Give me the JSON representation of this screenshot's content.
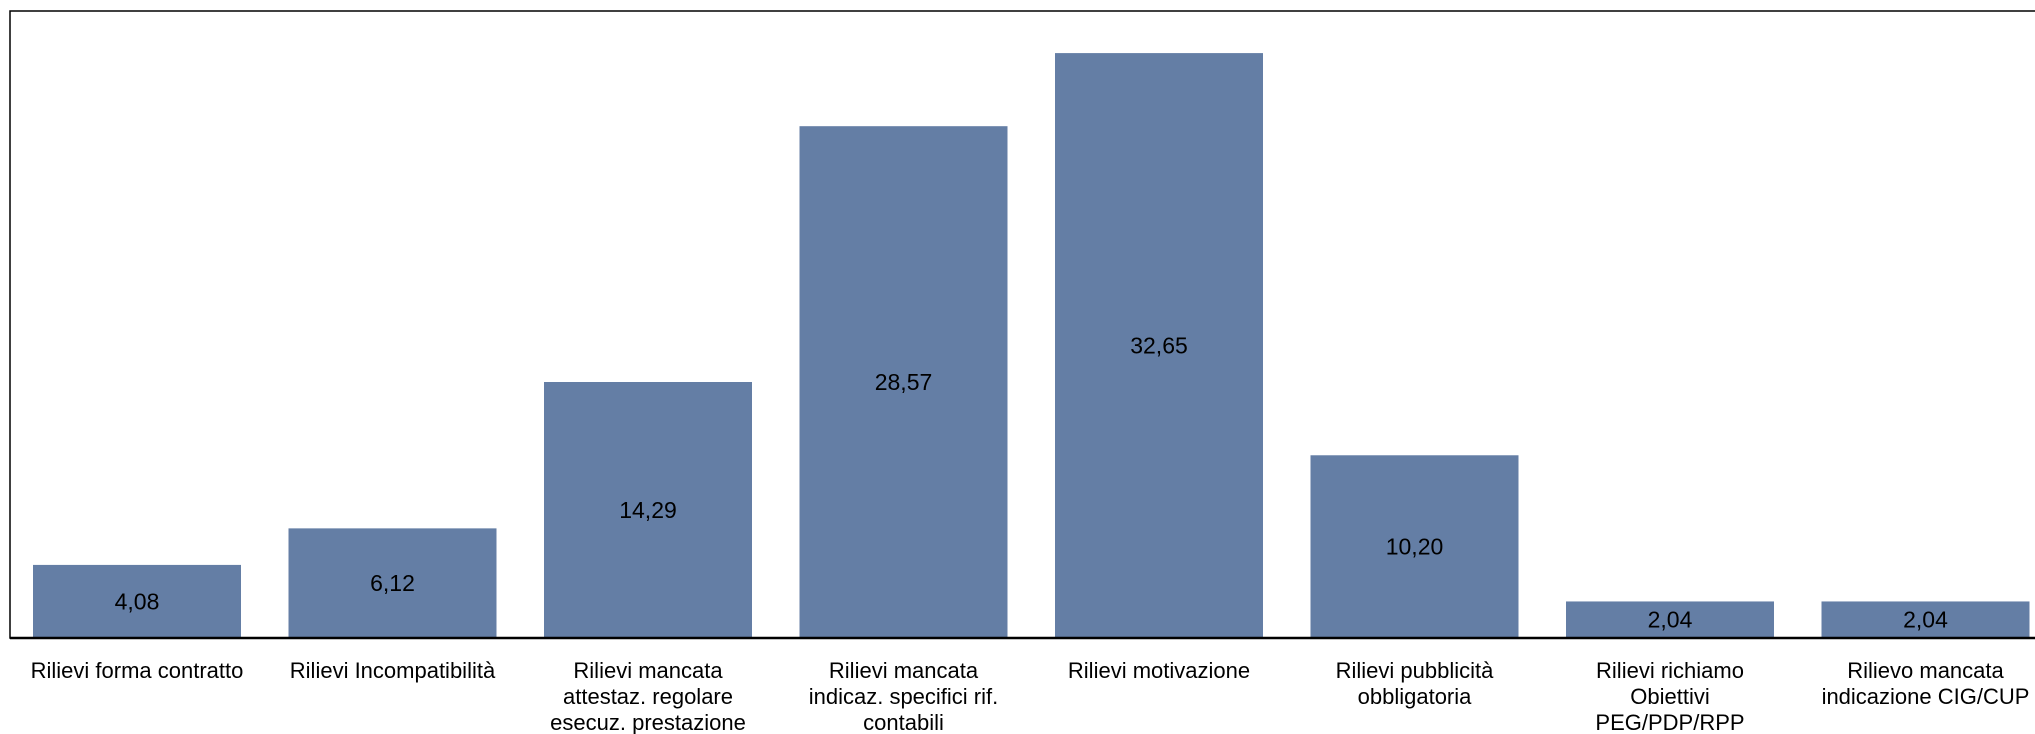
{
  "chart_data": {
    "type": "bar",
    "categories": [
      "Rilievi forma contratto",
      "Rilievi Incompatibilità",
      "Rilievi mancata attestaz. regolare esecuz. prestazione",
      "Rilievi mancata indicaz. specifici rif. contabili",
      "Rilievi motivazione",
      "Rilievi pubblicità obbligatoria",
      "Rilievi richiamo Obiettivi PEG/PDP/RPP",
      "Rilievo mancata indicazione CIG/CUP"
    ],
    "category_lines": [
      [
        "Rilievi forma contratto"
      ],
      [
        "Rilievi Incompatibilità"
      ],
      [
        "Rilievi mancata",
        "attestaz. regolare",
        "esecuz. prestazione"
      ],
      [
        "Rilievi mancata",
        "indicaz. specifici rif.",
        "contabili"
      ],
      [
        "Rilievi motivazione"
      ],
      [
        "Rilievi pubblicità",
        "obbligatoria"
      ],
      [
        "Rilievi richiamo",
        "Obiettivi",
        "PEG/PDP/RPP"
      ],
      [
        "Rilievo mancata",
        "indicazione CIG/CUP"
      ]
    ],
    "values": [
      4.08,
      6.12,
      14.29,
      28.57,
      32.65,
      10.2,
      2.04,
      2.04
    ],
    "value_labels": [
      "4,08",
      "6,12",
      "14,29",
      "28,57",
      "32,65",
      "10,20",
      "2,04",
      "2,04"
    ],
    "ylim": [
      0,
      35
    ],
    "title": "",
    "xlabel": "",
    "ylabel": "",
    "grid": false,
    "bar_color": "#647ea5",
    "axis_color": "#000000"
  }
}
